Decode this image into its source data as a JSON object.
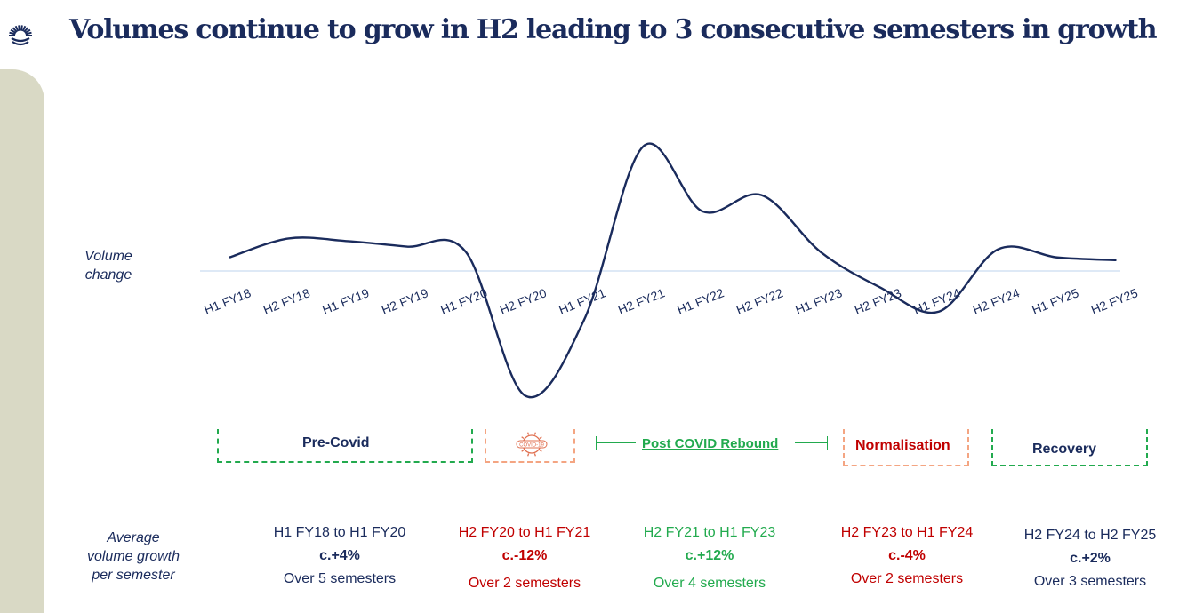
{
  "title": "Volumes continue to grow in H2 leading to 3 consecutive semesters in growth",
  "colors": {
    "navy": "#1a2b5c",
    "red": "#c00000",
    "green": "#22aa4e",
    "orange": "#f4a582",
    "baseline": "#bcd3ec",
    "sidebar": "#d9d9c5"
  },
  "logo": {
    "icon": "sunburst-logo-icon"
  },
  "chart_data": {
    "type": "line",
    "title": "Volumes continue to grow in H2 leading to 3 consecutive semesters in growth",
    "ylabel": [
      "Volume",
      "change"
    ],
    "categories": [
      "H1 FY18",
      "H2 FY18",
      "H1 FY19",
      "H2 FY19",
      "H1 FY20",
      "H2 FY20",
      "H1 FY21",
      "H2 FY21",
      "H1 FY22",
      "H2 FY22",
      "H1 FY23",
      "H2 FY23",
      "H1 FY24",
      "H2 FY24",
      "H1 FY25",
      "H2 FY25"
    ],
    "series": [
      {
        "values": [
          0.5,
          1.2,
          1.1,
          0.9,
          0.7,
          -4.6,
          -1.8,
          4.6,
          2.2,
          2.8,
          0.7,
          -0.6,
          -1.5,
          0.8,
          0.5,
          0.4
        ]
      }
    ],
    "baseline": 0,
    "grid": false,
    "legend": "none"
  },
  "phases": [
    {
      "label": "Pre-Covid",
      "style": "bracket-dashed",
      "color": "green",
      "text_color": "navy"
    },
    {
      "label": "COVID-19",
      "style": "bracket-dashed",
      "color": "orange",
      "icon": "covid-virus-icon"
    },
    {
      "label": "Post COVID Rebound",
      "style": "arrow-span",
      "color": "green",
      "text_color": "green",
      "underline": true
    },
    {
      "label": "Normalisation",
      "style": "bracket-dashed",
      "color": "orange",
      "text_color": "red"
    },
    {
      "label": "Recovery",
      "style": "bracket-dashed",
      "color": "green",
      "text_color": "navy"
    }
  ],
  "avg_label": [
    "Average",
    "volume growth",
    "per semester"
  ],
  "stats": [
    {
      "range": "H1 FY18 to H1 FY20",
      "pct": "c.+4%",
      "sem": "Over 5 semesters",
      "color": "navy"
    },
    {
      "range": "H2 FY20 to H1 FY21",
      "pct": "c.-12%",
      "sem": "Over 2 semesters",
      "color": "red"
    },
    {
      "range": "H2 FY21 to H1 FY23",
      "pct": "c.+12%",
      "sem": "Over 4 semesters",
      "color": "green"
    },
    {
      "range": "H2 FY23 to H1 FY24",
      "pct": "c.-4%",
      "sem": "Over 2 semesters",
      "color": "red"
    },
    {
      "range": "H2 FY24 to H2 FY25",
      "pct": "c.+2%",
      "sem": "Over 3 semesters",
      "color": "navy"
    }
  ]
}
